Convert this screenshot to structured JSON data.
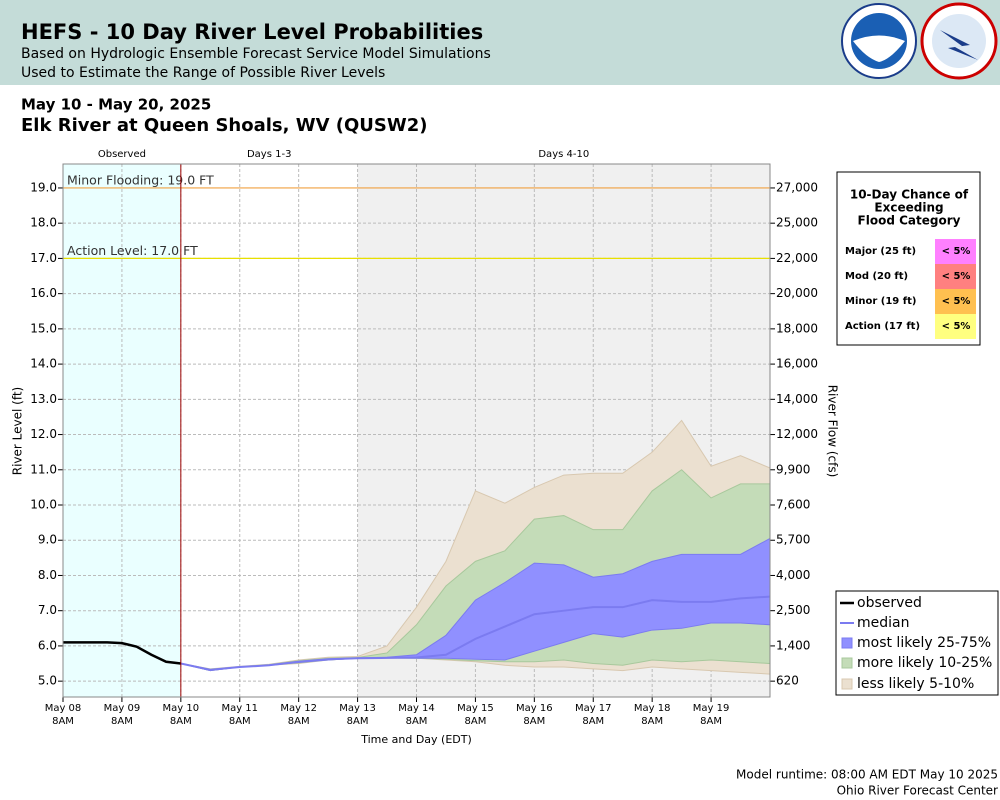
{
  "header": {
    "title": "HEFS - 10 Day River Level Probabilities",
    "subtitles": [
      "Based on Hydrologic Ensemble Forecast Service Model Simulations",
      "Used to Estimate the Range of Possible River Levels"
    ]
  },
  "period": "May 10 - May 20, 2025",
  "location": "Elk River at Queen Shoals, WV (QUSW2)",
  "chart_data": {
    "type": "line",
    "xlabel": "Time and Day (EDT)",
    "ylabel": "River Level (ft)",
    "y2label": "River Flow (cfs)",
    "xlim": [
      "2025-05-08T08:00",
      "2025-05-20T08:00"
    ],
    "xticks": [
      {
        "value": "2025-05-08T08:00",
        "label": "May 08",
        "sublabel": "8AM"
      },
      {
        "value": "2025-05-09T08:00",
        "label": "May 09",
        "sublabel": "8AM"
      },
      {
        "value": "2025-05-10T08:00",
        "label": "May 10",
        "sublabel": "8AM"
      },
      {
        "value": "2025-05-11T08:00",
        "label": "May 11",
        "sublabel": "8AM"
      },
      {
        "value": "2025-05-12T08:00",
        "label": "May 12",
        "sublabel": "8AM"
      },
      {
        "value": "2025-05-13T08:00",
        "label": "May 13",
        "sublabel": "8AM"
      },
      {
        "value": "2025-05-14T08:00",
        "label": "May 14",
        "sublabel": "8AM"
      },
      {
        "value": "2025-05-15T08:00",
        "label": "May 15",
        "sublabel": "8AM"
      },
      {
        "value": "2025-05-16T08:00",
        "label": "May 16",
        "sublabel": "8AM"
      },
      {
        "value": "2025-05-17T08:00",
        "label": "May 17",
        "sublabel": "8AM"
      },
      {
        "value": "2025-05-18T08:00",
        "label": "May 18",
        "sublabel": "8AM"
      },
      {
        "value": "2025-05-19T08:00",
        "label": "May 19",
        "sublabel": "8AM"
      }
    ],
    "ylim": [
      4.55,
      19.68
    ],
    "yticks": [
      {
        "value": 5,
        "label": "5.0"
      },
      {
        "value": 6,
        "label": "6.0"
      },
      {
        "value": 7,
        "label": "7.0"
      },
      {
        "value": 8,
        "label": "8.0"
      },
      {
        "value": 9,
        "label": "9.0"
      },
      {
        "value": 10,
        "label": "10.0"
      },
      {
        "value": 11,
        "label": "11.0"
      },
      {
        "value": 12,
        "label": "12.0"
      },
      {
        "value": 13,
        "label": "13.0"
      },
      {
        "value": 14,
        "label": "14.0"
      },
      {
        "value": 15,
        "label": "15.0"
      },
      {
        "value": 16,
        "label": "16.0"
      },
      {
        "value": 17,
        "label": "17.0"
      },
      {
        "value": 18,
        "label": "18.0"
      },
      {
        "value": 19,
        "label": "19.0"
      }
    ],
    "y2ticks": [
      {
        "value": 620,
        "label": "620",
        "stage": 5
      },
      {
        "value": 1400,
        "label": "1,400",
        "stage": 6
      },
      {
        "value": 2500,
        "label": "2,500",
        "stage": 7
      },
      {
        "value": 4000,
        "label": "4,000",
        "stage": 8
      },
      {
        "value": 5700,
        "label": "5,700",
        "stage": 9
      },
      {
        "value": 7600,
        "label": "7,600",
        "stage": 10
      },
      {
        "value": 9900,
        "label": "9,900",
        "stage": 11
      },
      {
        "value": 12000,
        "label": "12,000",
        "stage": 12
      },
      {
        "value": 14000,
        "label": "14,000",
        "stage": 13
      },
      {
        "value": 16000,
        "label": "16,000",
        "stage": 14
      },
      {
        "value": 18000,
        "label": "18,000",
        "stage": 15
      },
      {
        "value": 20000,
        "label": "20,000",
        "stage": 16
      },
      {
        "value": 22000,
        "label": "22,000",
        "stage": 17
      },
      {
        "value": 25000,
        "label": "25,000",
        "stage": 18
      },
      {
        "value": 27000,
        "label": "27,000",
        "stage": 19
      }
    ],
    "grid": true,
    "regions": [
      {
        "label": "Observed",
        "start": "2025-05-08T08:00",
        "end": "2025-05-10T08:00",
        "color": "#eaffff"
      },
      {
        "label": "Days 1-3",
        "start": "2025-05-10T08:00",
        "end": "2025-05-13T08:00",
        "color": "#ffffff"
      },
      {
        "label": "Days 4-10",
        "start": "2025-05-13T08:00",
        "end": "2025-05-20T08:00",
        "color": "#f0f0f0"
      }
    ],
    "forecast_start": "2025-05-10T08:00",
    "thresholds": [
      {
        "label": "Minor Flooding: 19.0 FT",
        "value": 19,
        "color": "#f0a040"
      },
      {
        "label": "Action Level: 17.0 FT",
        "value": 17,
        "color": "#e8e000"
      }
    ],
    "x": [
      "2025-05-10T08:00",
      "2025-05-10T20:00",
      "2025-05-11T08:00",
      "2025-05-11T20:00",
      "2025-05-12T08:00",
      "2025-05-12T20:00",
      "2025-05-13T08:00",
      "2025-05-13T20:00",
      "2025-05-14T08:00",
      "2025-05-14T20:00",
      "2025-05-15T08:00",
      "2025-05-15T20:00",
      "2025-05-16T08:00",
      "2025-05-16T20:00",
      "2025-05-17T08:00",
      "2025-05-17T20:00",
      "2025-05-18T08:00",
      "2025-05-18T20:00",
      "2025-05-19T08:00",
      "2025-05-19T20:00",
      "2025-05-20T08:00"
    ],
    "series": [
      {
        "name": "observed",
        "color": "#000000",
        "width": 2.5,
        "x": [
          "2025-05-08T08:00",
          "2025-05-08T14:00",
          "2025-05-08T20:00",
          "2025-05-09T02:00",
          "2025-05-09T08:00",
          "2025-05-09T14:00",
          "2025-05-09T20:00",
          "2025-05-10T02:00",
          "2025-05-10T08:00"
        ],
        "values": [
          6.1,
          6.1,
          6.1,
          6.1,
          6.08,
          5.98,
          5.75,
          5.55,
          5.5
        ]
      },
      {
        "name": "median",
        "color": "#7b7bf0",
        "width": 2,
        "values": [
          5.5,
          5.32,
          5.4,
          5.45,
          5.55,
          5.62,
          5.65,
          5.66,
          5.67,
          5.75,
          6.2,
          6.55,
          6.9,
          7.0,
          7.1,
          7.1,
          7.3,
          7.25,
          7.25,
          7.35,
          7.4
        ]
      }
    ],
    "bands": [
      {
        "name": "most likely 25-75%",
        "color": "#9090ff",
        "edge": "#7b7bf0",
        "lower": [
          5.5,
          5.3,
          5.4,
          5.45,
          5.53,
          5.6,
          5.65,
          5.66,
          5.65,
          5.65,
          5.62,
          5.6,
          5.85,
          6.1,
          6.35,
          6.25,
          6.45,
          6.5,
          6.65,
          6.65,
          6.6
        ],
        "upper": [
          5.5,
          5.33,
          5.4,
          5.46,
          5.56,
          5.63,
          5.66,
          5.68,
          5.75,
          6.3,
          7.3,
          7.8,
          8.35,
          8.3,
          7.95,
          8.05,
          8.4,
          8.6,
          8.6,
          8.6,
          9.05
        ]
      },
      {
        "name": "more likely 10-25%",
        "color": "#c4dcb8",
        "edge": "#a8c89c",
        "lower": [
          5.5,
          5.3,
          5.4,
          5.45,
          5.52,
          5.6,
          5.65,
          5.66,
          5.65,
          5.62,
          5.58,
          5.55,
          5.55,
          5.6,
          5.5,
          5.45,
          5.6,
          5.55,
          5.6,
          5.55,
          5.5
        ],
        "upper": [
          5.5,
          5.34,
          5.41,
          5.47,
          5.58,
          5.65,
          5.67,
          5.8,
          6.6,
          7.7,
          8.4,
          8.7,
          9.6,
          9.7,
          9.3,
          9.3,
          10.4,
          11.0,
          10.2,
          10.6,
          10.6
        ]
      },
      {
        "name": "less likely 5-10%",
        "color": "#ebe0d0",
        "edge": "#d8c8b0",
        "lower": [
          5.5,
          5.3,
          5.4,
          5.45,
          5.5,
          5.6,
          5.65,
          5.65,
          5.65,
          5.6,
          5.55,
          5.45,
          5.4,
          5.4,
          5.35,
          5.3,
          5.4,
          5.35,
          5.3,
          5.25,
          5.2
        ],
        "upper": [
          5.5,
          5.35,
          5.42,
          5.48,
          5.6,
          5.68,
          5.7,
          6.0,
          7.1,
          8.4,
          10.4,
          10.05,
          10.5,
          10.85,
          10.9,
          10.9,
          11.5,
          12.4,
          11.1,
          11.4,
          11.05
        ]
      }
    ]
  },
  "exceedance_table": {
    "title": [
      "10-Day Chance of",
      "Exceeding",
      "Flood Category"
    ],
    "rows": [
      {
        "category": "Major (25 ft)",
        "chance": "< 5%",
        "color": "#ff80ff"
      },
      {
        "category": "Mod (20 ft)",
        "chance": "< 5%",
        "color": "#ff8080"
      },
      {
        "category": "Minor (19 ft)",
        "chance": "< 5%",
        "color": "#ffc050"
      },
      {
        "category": "Action (17 ft)",
        "chance": "< 5%",
        "color": "#ffff80"
      }
    ]
  },
  "footer": [
    "Model runtime: 08:00 AM EDT May 10 2025",
    "Ohio River Forecast Center"
  ]
}
